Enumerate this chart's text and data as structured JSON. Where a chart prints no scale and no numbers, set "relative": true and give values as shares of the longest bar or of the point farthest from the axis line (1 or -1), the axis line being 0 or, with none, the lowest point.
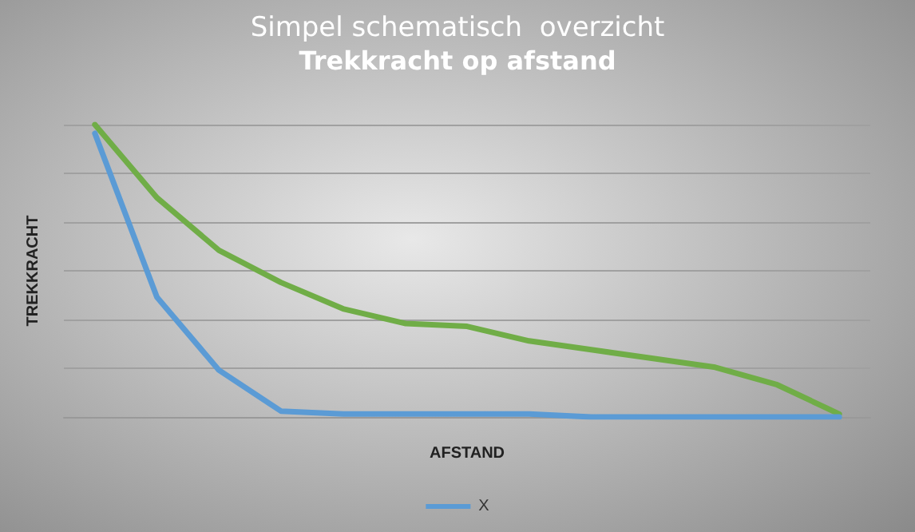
{
  "chart_data": {
    "type": "line",
    "title": "Simpel schematisch  overzicht",
    "subtitle": "Trekkracht op afstand",
    "xlabel": "AFSTAND",
    "ylabel": "TREKKRACHT",
    "relative": true,
    "grid": "y",
    "legend": "bottom",
    "marker": "none",
    "line_style": "solid",
    "categories": [
      null,
      null,
      null,
      null,
      null,
      null,
      null,
      null,
      null,
      null,
      null,
      null,
      null
    ],
    "series": [
      {
        "color": "#70ad47",
        "values": [
          1,
          0.75,
          0.57,
          0.46,
          0.37,
          0.32,
          0.31,
          0.26,
          0.23,
          0.2,
          0.17,
          0.11,
          0.01
        ]
      },
      {
        "name": "X",
        "color": "#5b9bd5",
        "values": [
          0.97,
          0.41,
          0.16,
          0.02,
          0.01,
          0.01,
          0.01,
          0.01,
          0,
          0,
          0,
          0,
          0
        ]
      }
    ]
  }
}
